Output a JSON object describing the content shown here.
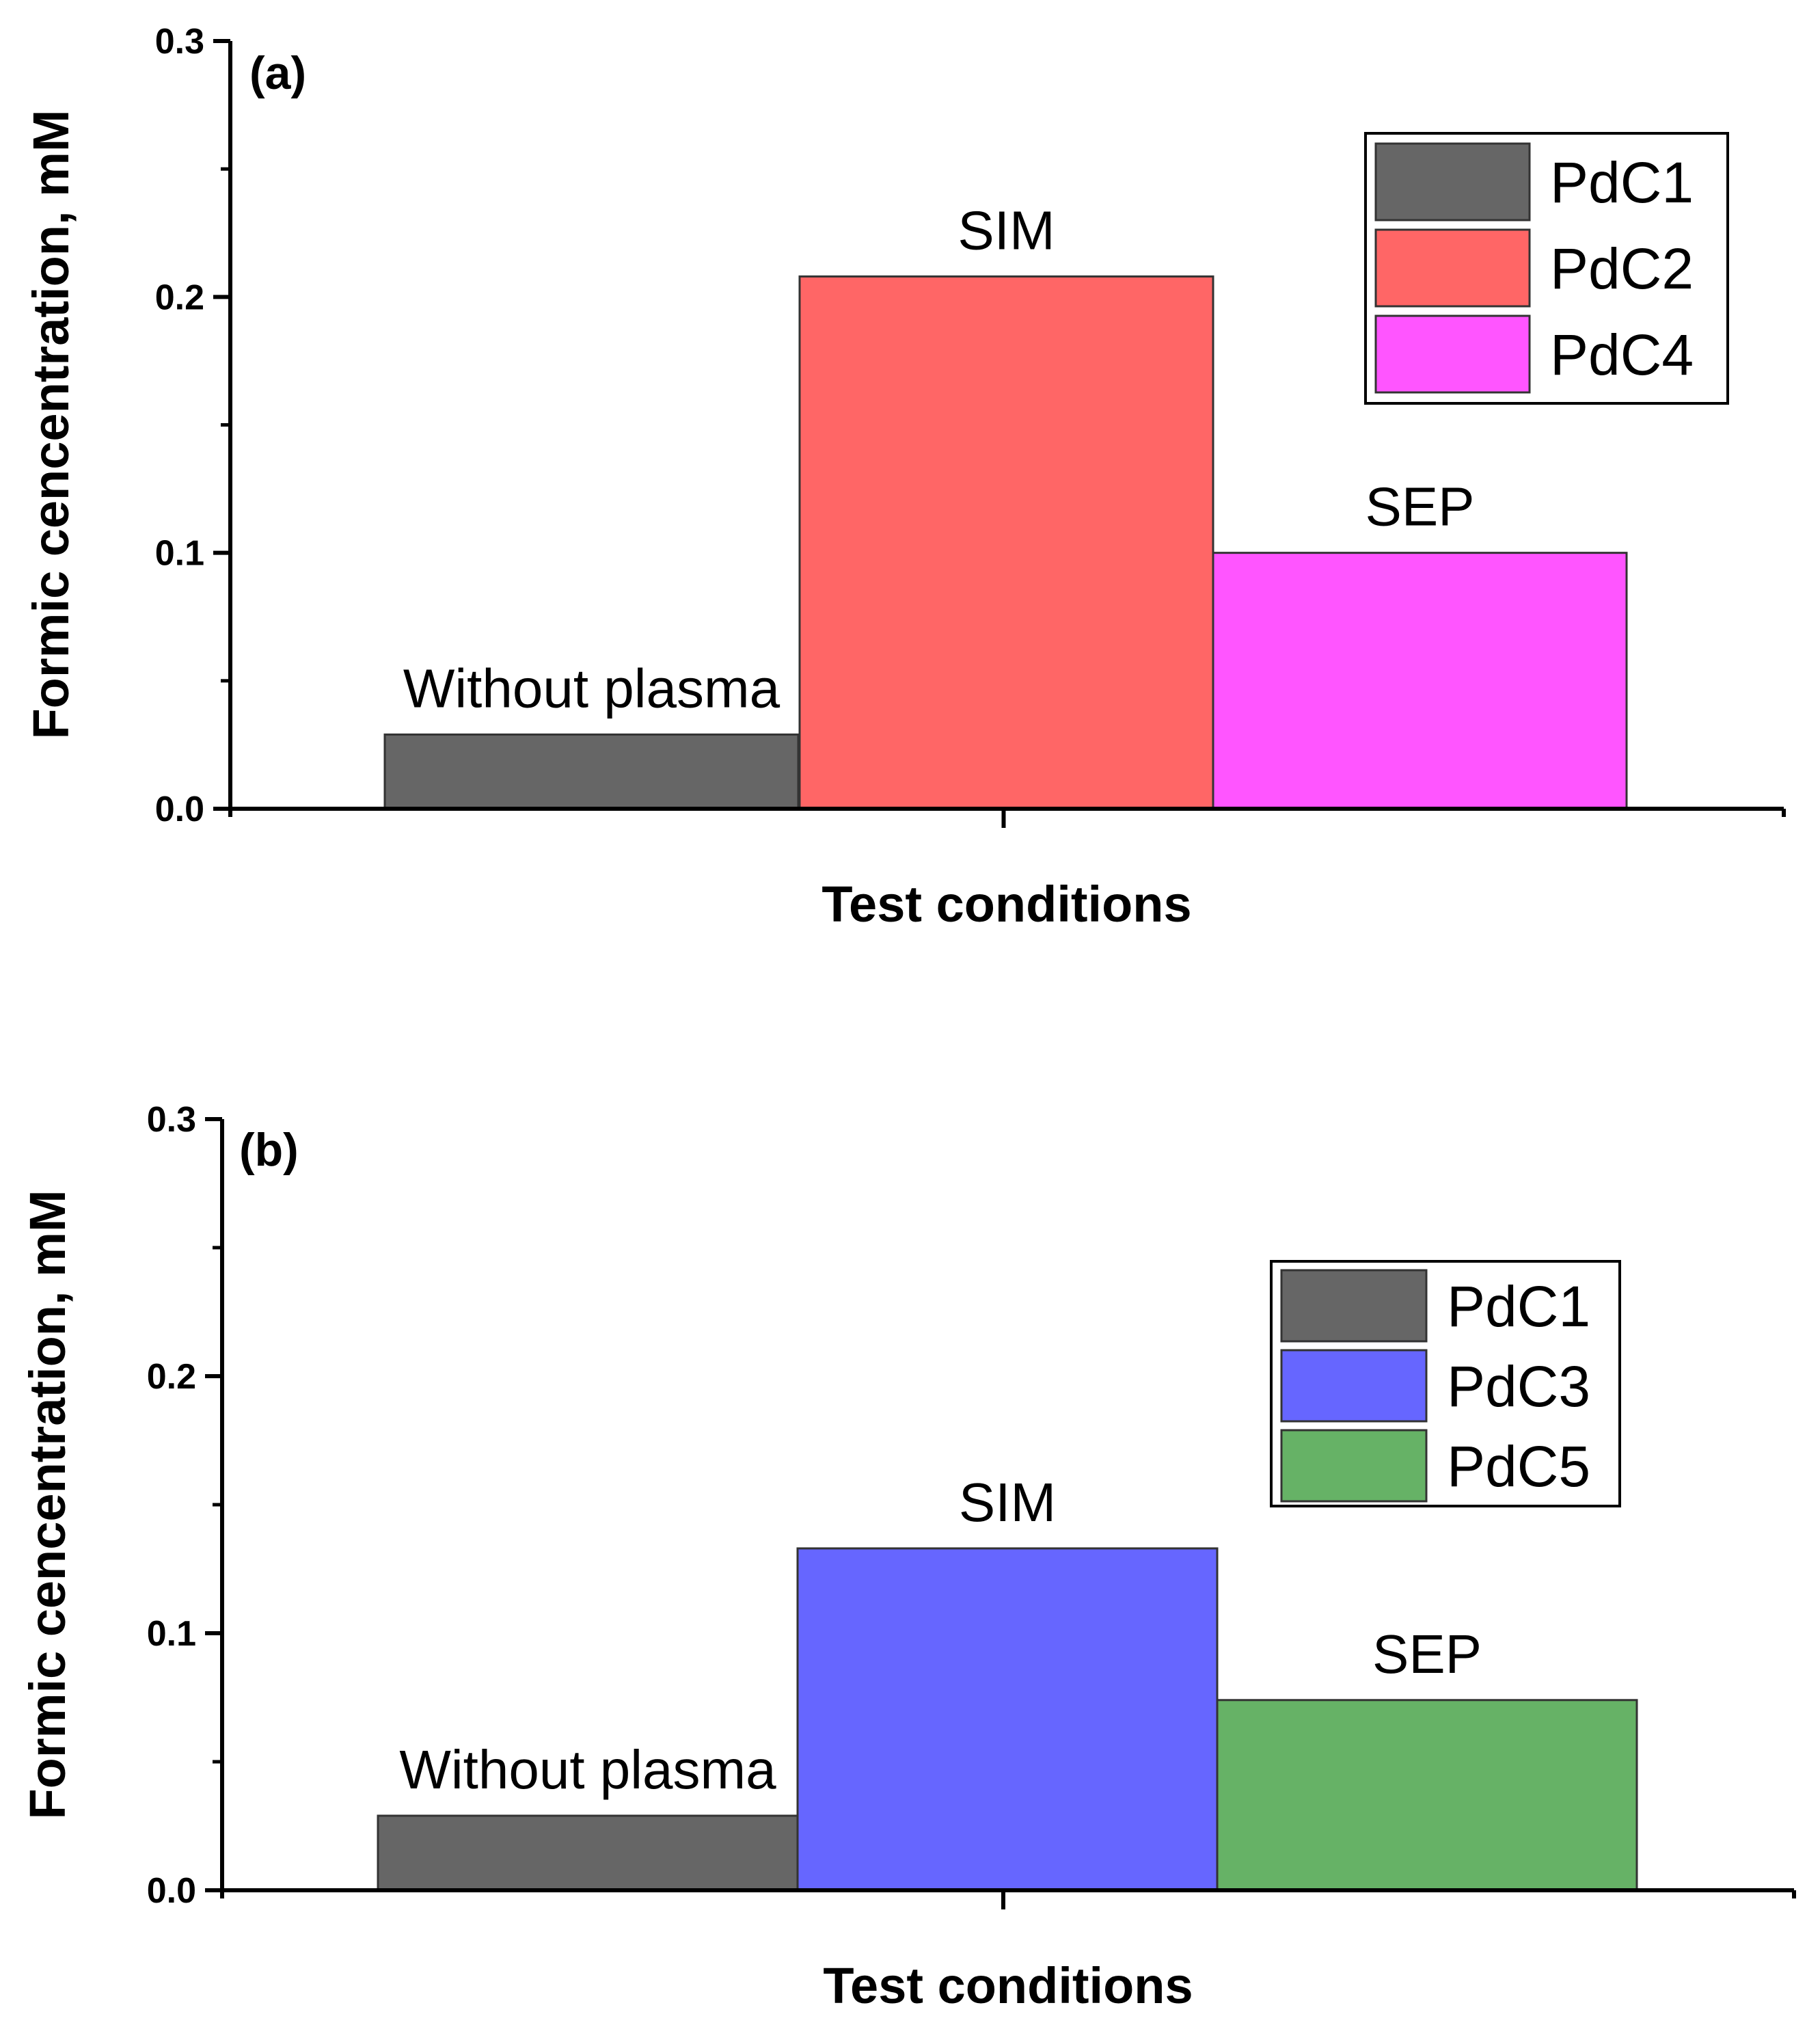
{
  "colors": {
    "axis": "#000000",
    "bar_stroke": "#333333",
    "PdC1": "#666666",
    "PdC2": "#ff6666",
    "PdC3": "#6666ff",
    "PdC4": "#ff55ff",
    "PdC5": "#66b266"
  },
  "chart_data": [
    {
      "type": "bar",
      "panel_label": "(a)",
      "xlabel": "Test conditions",
      "ylabel": "Formic cencentration, mM",
      "ylim": [
        0,
        0.3
      ],
      "yticks": [
        "0.0",
        "0.1",
        "0.2",
        "0.3"
      ],
      "legend_position": "top-right",
      "series": [
        {
          "name": "PdC1",
          "category": "Without plasma",
          "value": 0.029,
          "color": "#666666"
        },
        {
          "name": "PdC2",
          "category": "SIM",
          "value": 0.208,
          "color": "#ff6666"
        },
        {
          "name": "PdC4",
          "category": "SEP",
          "value": 0.1,
          "color": "#ff55ff"
        }
      ]
    },
    {
      "type": "bar",
      "panel_label": "(b)",
      "xlabel": "Test conditions",
      "ylabel": "Formic cencentration, mM",
      "ylim": [
        0,
        0.3
      ],
      "yticks": [
        "0.0",
        "0.1",
        "0.2",
        "0.3"
      ],
      "legend_position": "top-right",
      "series": [
        {
          "name": "PdC1",
          "category": "Without plasma",
          "value": 0.029,
          "color": "#666666"
        },
        {
          "name": "PdC3",
          "category": "SIM",
          "value": 0.133,
          "color": "#6666ff"
        },
        {
          "name": "PdC5",
          "category": "SEP",
          "value": 0.074,
          "color": "#66b266"
        }
      ]
    }
  ]
}
